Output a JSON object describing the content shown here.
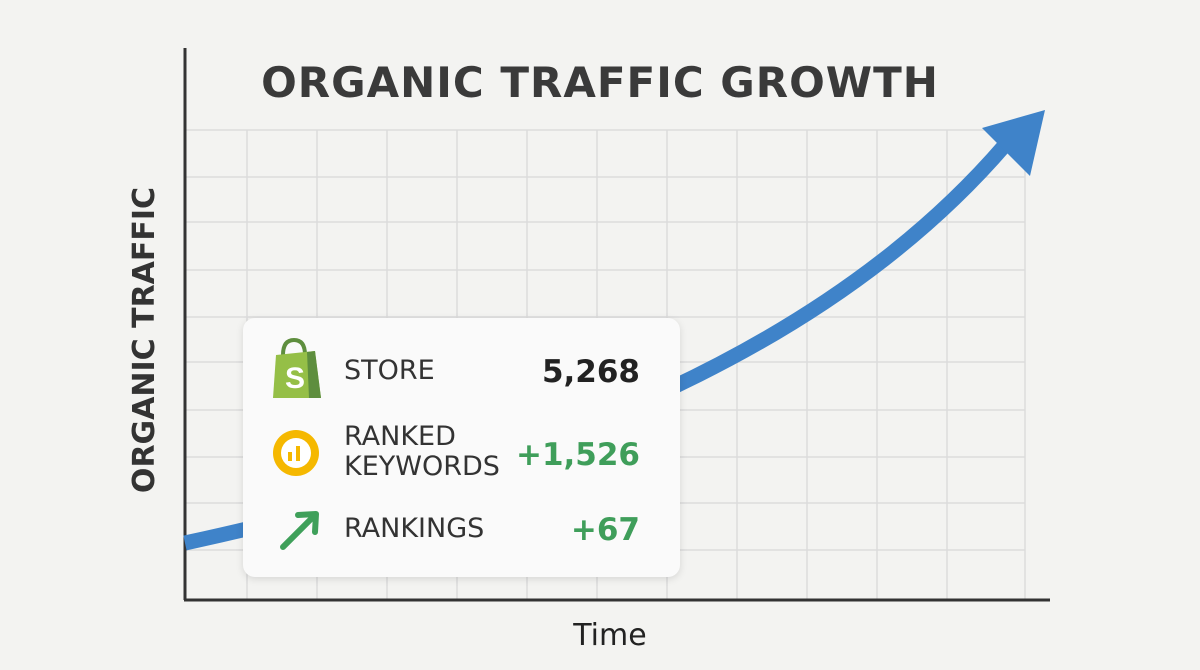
{
  "title": "ORGANIC TRAFFIC GROWTH",
  "y_axis_label": "ORGANIC TRAFFIC",
  "x_axis_label": "Time",
  "card": {
    "rows": [
      {
        "label": "STORE",
        "value": "5,268"
      },
      {
        "label": "RANKED KEYWORDS",
        "value": "+1,526"
      },
      {
        "label": "RANKINGS",
        "value": "+67"
      }
    ]
  }
}
